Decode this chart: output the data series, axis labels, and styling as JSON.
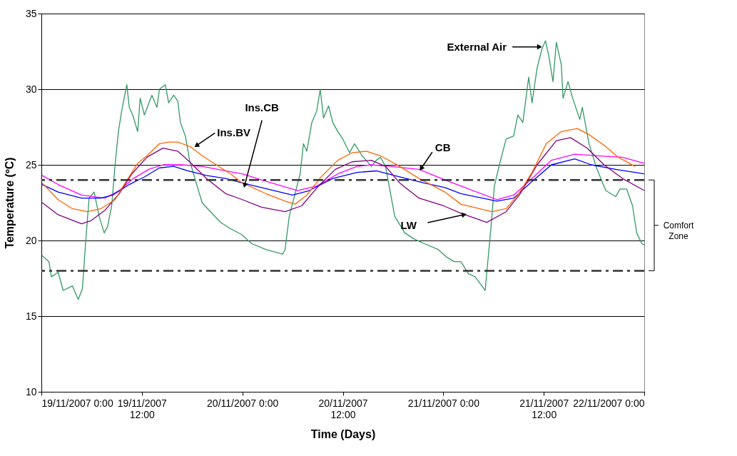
{
  "chart_data": {
    "type": "line",
    "xlabel": "Time (Days)",
    "ylabel": "Temperature (ºC)",
    "xlim": [
      "2007-11-19T00:00",
      "2007-11-22T00:00"
    ],
    "ylim": [
      10,
      35
    ],
    "xticks": [
      {
        "value": "2007-11-19T00:00",
        "label": "19/11/2007 0:00"
      },
      {
        "value": "2007-11-19T12:00",
        "label": "19/11/2007\n12:00"
      },
      {
        "value": "2007-11-20T00:00",
        "label": "20/11/2007 0:00"
      },
      {
        "value": "2007-11-20T12:00",
        "label": "20/11/2007\n12:00"
      },
      {
        "value": "2007-11-21T00:00",
        "label": "21/11/2007 0:00"
      },
      {
        "value": "2007-11-21T12:00",
        "label": "21/11/2007\n12:00"
      },
      {
        "value": "2007-11-22T00:00",
        "label": "22/11/2007 0:00"
      }
    ],
    "yticks": [
      10,
      15,
      20,
      25,
      30,
      35
    ],
    "grid": "y",
    "line_style": "solid",
    "marker": "none",
    "series": [
      {
        "color": "#339966",
        "x": [
          "2007-11-19T00:06",
          "2007-11-19T00:54",
          "2007-11-19T01:12",
          "2007-11-19T02:00",
          "2007-11-19T02:36",
          "2007-11-19T03:42",
          "2007-11-19T04:24",
          "2007-11-19T04:54",
          "2007-11-19T05:18",
          "2007-11-19T05:42",
          "2007-11-19T06:18",
          "2007-11-19T06:54",
          "2007-11-19T07:30",
          "2007-11-19T07:54",
          "2007-11-19T08:24",
          "2007-11-19T08:48",
          "2007-11-19T09:12",
          "2007-11-19T09:36",
          "2007-11-19T10:12",
          "2007-11-19T10:30",
          "2007-11-19T10:54",
          "2007-11-19T11:30",
          "2007-11-19T11:48",
          "2007-11-19T12:18",
          "2007-11-19T13:12",
          "2007-11-19T13:48",
          "2007-11-19T14:06",
          "2007-11-19T14:48",
          "2007-11-19T15:12",
          "2007-11-19T15:48",
          "2007-11-19T16:18",
          "2007-11-19T16:36",
          "2007-11-19T17:12",
          "2007-11-19T17:42",
          "2007-11-19T18:36",
          "2007-11-19T19:12",
          "2007-11-19T20:12",
          "2007-11-19T21:24",
          "2007-11-19T22:30",
          "2007-11-19T23:54",
          "2007-11-20T01:06",
          "2007-11-20T02:48",
          "2007-11-20T04:48",
          "2007-11-20T05:06",
          "2007-11-20T05:36",
          "2007-11-20T06:18",
          "2007-11-20T06:54",
          "2007-11-20T07:18",
          "2007-11-20T07:42",
          "2007-11-20T08:18",
          "2007-11-20T08:54",
          "2007-11-20T09:18",
          "2007-11-20T09:42",
          "2007-11-20T10:18",
          "2007-11-20T10:48",
          "2007-11-20T11:24",
          "2007-11-20T12:00",
          "2007-11-20T12:48",
          "2007-11-20T13:24",
          "2007-11-20T14:18",
          "2007-11-20T15:24",
          "2007-11-20T16:00",
          "2007-11-20T16:30",
          "2007-11-20T17:06",
          "2007-11-20T17:42",
          "2007-11-20T18:12",
          "2007-11-20T19:24",
          "2007-11-20T20:30",
          "2007-11-20T21:42",
          "2007-11-20T23:24",
          "2007-11-21T00:24",
          "2007-11-21T01:18",
          "2007-11-21T02:06",
          "2007-11-21T03:00",
          "2007-11-21T03:48",
          "2007-11-21T05:00",
          "2007-11-21T05:12",
          "2007-11-21T05:42",
          "2007-11-21T06:06",
          "2007-11-21T06:42",
          "2007-11-21T07:30",
          "2007-11-21T08:24",
          "2007-11-21T08:54",
          "2007-11-21T09:30",
          "2007-11-21T10:12",
          "2007-11-21T10:36",
          "2007-11-21T11:12",
          "2007-11-21T11:48",
          "2007-11-21T12:12",
          "2007-11-21T12:36",
          "2007-11-21T13:06",
          "2007-11-21T13:30",
          "2007-11-21T14:06",
          "2007-11-21T14:18",
          "2007-11-21T14:54",
          "2007-11-21T15:24",
          "2007-11-21T16:18",
          "2007-11-21T16:36",
          "2007-11-21T17:24",
          "2007-11-21T18:18",
          "2007-11-21T19:24",
          "2007-11-21T20:36",
          "2007-11-21T21:06",
          "2007-11-21T21:54",
          "2007-11-21T22:36",
          "2007-11-21T23:06",
          "2007-11-21T23:42",
          "2007-11-22T00:00"
        ],
        "values": [
          19.0,
          18.6,
          17.6,
          17.9,
          16.7,
          17.0,
          16.1,
          16.8,
          20.0,
          22.8,
          23.2,
          21.6,
          20.5,
          20.9,
          22.3,
          25.0,
          27.2,
          28.6,
          30.3,
          28.8,
          28.3,
          27.2,
          29.4,
          28.3,
          29.6,
          28.8,
          30.0,
          30.3,
          29.1,
          29.6,
          29.2,
          27.8,
          26.9,
          25.3,
          23.6,
          22.5,
          21.9,
          21.2,
          20.8,
          20.4,
          19.8,
          19.4,
          19.1,
          19.4,
          21.6,
          23.1,
          24.4,
          26.4,
          25.9,
          27.8,
          28.6,
          30.0,
          28.1,
          28.9,
          27.8,
          27.2,
          26.7,
          25.8,
          26.4,
          25.6,
          24.9,
          25.3,
          25.5,
          24.9,
          23.1,
          21.6,
          20.5,
          20.1,
          19.8,
          19.4,
          18.9,
          18.6,
          18.6,
          17.8,
          17.6,
          16.7,
          17.9,
          20.9,
          23.6,
          25.0,
          26.7,
          26.9,
          28.3,
          27.8,
          30.8,
          29.1,
          31.4,
          32.7,
          33.2,
          32.2,
          30.5,
          33.1,
          31.6,
          29.4,
          30.5,
          29.5,
          28.0,
          28.8,
          26.4,
          24.8,
          23.3,
          22.9,
          23.4,
          23.4,
          22.3,
          20.5,
          19.8,
          19.7
        ]
      },
      {
        "color": "#ff00ff",
        "x": [
          "2007-11-19T00:06",
          "2007-11-19T02:00",
          "2007-11-19T04:48",
          "2007-11-19T07:36",
          "2007-11-19T09:18",
          "2007-11-19T11:00",
          "2007-11-19T12:48",
          "2007-11-19T14:30",
          "2007-11-19T16:48",
          "2007-11-19T19:12",
          "2007-11-19T22:00",
          "2007-11-20T00:00",
          "2007-11-20T02:18",
          "2007-11-20T06:36",
          "2007-11-20T08:54",
          "2007-11-20T11:24",
          "2007-11-20T13:42",
          "2007-11-20T15:24",
          "2007-11-20T17:42",
          "2007-11-20T21:06",
          "2007-11-21T00:12",
          "2007-11-21T02:06",
          "2007-11-21T06:24",
          "2007-11-21T08:24",
          "2007-11-21T10:36",
          "2007-11-21T12:54",
          "2007-11-21T15:42",
          "2007-11-21T18:30",
          "2007-11-21T21:24",
          "2007-11-22T00:00"
        ],
        "values": [
          24.3,
          23.7,
          23.0,
          22.8,
          23.3,
          24.1,
          24.7,
          25.0,
          25.0,
          24.9,
          24.6,
          24.4,
          24.0,
          23.3,
          23.6,
          24.4,
          24.9,
          25.0,
          24.9,
          24.7,
          24.0,
          23.6,
          22.7,
          23.0,
          24.1,
          25.3,
          25.7,
          25.6,
          25.5,
          25.1
        ]
      },
      {
        "color": "#0000ff",
        "x": [
          "2007-11-19T00:06",
          "2007-11-19T02:00",
          "2007-11-19T04:48",
          "2007-11-19T07:06",
          "2007-11-19T08:30",
          "2007-11-19T10:30",
          "2007-11-19T12:18",
          "2007-11-19T14:06",
          "2007-11-19T15:48",
          "2007-11-19T17:30",
          "2007-11-19T19:42",
          "2007-11-19T22:00",
          "2007-11-20T00:00",
          "2007-11-20T02:18",
          "2007-11-20T06:00",
          "2007-11-20T08:00",
          "2007-11-20T10:48",
          "2007-11-20T13:42",
          "2007-11-20T16:00",
          "2007-11-20T18:48",
          "2007-11-20T21:42",
          "2007-11-21T00:12",
          "2007-11-21T02:06",
          "2007-11-21T06:24",
          "2007-11-21T08:24",
          "2007-11-21T10:36",
          "2007-11-21T12:54",
          "2007-11-21T15:42",
          "2007-11-21T17:42",
          "2007-11-21T20:36",
          "2007-11-22T00:00"
        ],
        "values": [
          23.7,
          23.2,
          22.8,
          22.8,
          23.0,
          23.7,
          24.2,
          24.8,
          24.9,
          24.6,
          24.3,
          24.1,
          23.8,
          23.5,
          23.0,
          23.3,
          24.1,
          24.5,
          24.6,
          24.2,
          23.8,
          23.5,
          23.1,
          22.6,
          22.8,
          23.9,
          25.0,
          25.4,
          25.0,
          24.7,
          24.4
        ]
      },
      {
        "color": "#800080",
        "x": [
          "2007-11-19T00:06",
          "2007-11-19T02:00",
          "2007-11-19T04:48",
          "2007-11-19T05:54",
          "2007-11-19T07:36",
          "2007-11-19T09:18",
          "2007-11-19T10:48",
          "2007-11-19T12:36",
          "2007-11-19T14:30",
          "2007-11-19T16:18",
          "2007-11-19T17:42",
          "2007-11-19T19:42",
          "2007-11-19T22:00",
          "2007-11-20T00:00",
          "2007-11-20T02:18",
          "2007-11-20T05:06",
          "2007-11-20T07:06",
          "2007-11-20T09:06",
          "2007-11-20T11:06",
          "2007-11-20T13:06",
          "2007-11-20T15:24",
          "2007-11-20T17:06",
          "2007-11-20T18:48",
          "2007-11-20T21:06",
          "2007-11-21T00:00",
          "2007-11-21T02:06",
          "2007-11-21T05:12",
          "2007-11-21T07:30",
          "2007-11-21T09:12",
          "2007-11-21T11:12",
          "2007-11-21T13:30",
          "2007-11-21T15:12",
          "2007-11-21T17:12",
          "2007-11-21T19:12",
          "2007-11-21T21:24",
          "2007-11-22T00:00"
        ],
        "values": [
          22.5,
          21.7,
          21.1,
          21.3,
          22.0,
          23.1,
          24.4,
          25.5,
          26.1,
          25.9,
          25.2,
          24.1,
          23.1,
          22.7,
          22.2,
          21.9,
          22.3,
          23.6,
          24.7,
          25.2,
          25.3,
          24.9,
          23.8,
          22.8,
          22.3,
          21.8,
          21.2,
          21.9,
          23.1,
          25.0,
          26.6,
          26.8,
          26.1,
          25.0,
          24.1,
          23.3
        ]
      },
      {
        "color": "#ff6600",
        "x": [
          "2007-11-19T00:06",
          "2007-11-19T02:00",
          "2007-11-19T03:42",
          "2007-11-19T05:30",
          "2007-11-19T07:06",
          "2007-11-19T08:48",
          "2007-11-19T10:00",
          "2007-11-19T11:30",
          "2007-11-19T12:36",
          "2007-11-19T14:06",
          "2007-11-19T15:12",
          "2007-11-19T16:18",
          "2007-11-19T17:48",
          "2007-11-19T19:12",
          "2007-11-19T20:54",
          "2007-11-19T22:36",
          "2007-11-20T00:00",
          "2007-11-20T02:48",
          "2007-11-20T05:06",
          "2007-11-20T06:18",
          "2007-11-20T07:42",
          "2007-11-20T09:24",
          "2007-11-20T11:24",
          "2007-11-20T13:06",
          "2007-11-20T14:48",
          "2007-11-20T16:30",
          "2007-11-20T18:48",
          "2007-11-20T21:06",
          "2007-11-21T00:12",
          "2007-11-21T02:06",
          "2007-11-21T05:48",
          "2007-11-21T07:30",
          "2007-11-21T08:54",
          "2007-11-21T10:36",
          "2007-11-21T12:18",
          "2007-11-21T14:06",
          "2007-11-21T16:00",
          "2007-11-21T17:24",
          "2007-11-21T19:12",
          "2007-11-21T20:54",
          "2007-11-21T22:54"
        ],
        "values": [
          23.8,
          22.7,
          22.1,
          21.9,
          22.1,
          22.7,
          23.8,
          25.1,
          25.6,
          26.4,
          26.5,
          26.5,
          26.2,
          25.6,
          25.0,
          24.4,
          23.8,
          23.1,
          22.6,
          22.4,
          23.0,
          24.2,
          25.3,
          25.8,
          25.9,
          25.6,
          24.9,
          24.1,
          23.2,
          22.4,
          21.9,
          22.1,
          23.0,
          24.5,
          26.4,
          27.2,
          27.4,
          27.0,
          26.3,
          25.5,
          24.9
        ]
      }
    ],
    "ref_lines": [
      {
        "axis": "y",
        "value": 24,
        "label": null,
        "line_style": "dashed",
        "color": "#333333"
      },
      {
        "axis": "y",
        "value": 18,
        "label": null,
        "line_style": "dashed",
        "color": "#333333"
      }
    ],
    "annotations": [
      {
        "text": "External Air",
        "x": "2007-11-21T11:24",
        "y": 32.8
      },
      {
        "text": "Ins.BV",
        "x": "2007-11-19T18:36",
        "y": 26.3
      },
      {
        "text": "Ins.CB",
        "x": "2007-11-20T00:18",
        "y": 23.7
      },
      {
        "text": "CB",
        "x": "2007-11-20T21:24",
        "y": 24.8
      },
      {
        "text": "LW",
        "x": "2007-11-21T02:24",
        "y": 21.7
      },
      "Comfort Zone"
    ]
  }
}
